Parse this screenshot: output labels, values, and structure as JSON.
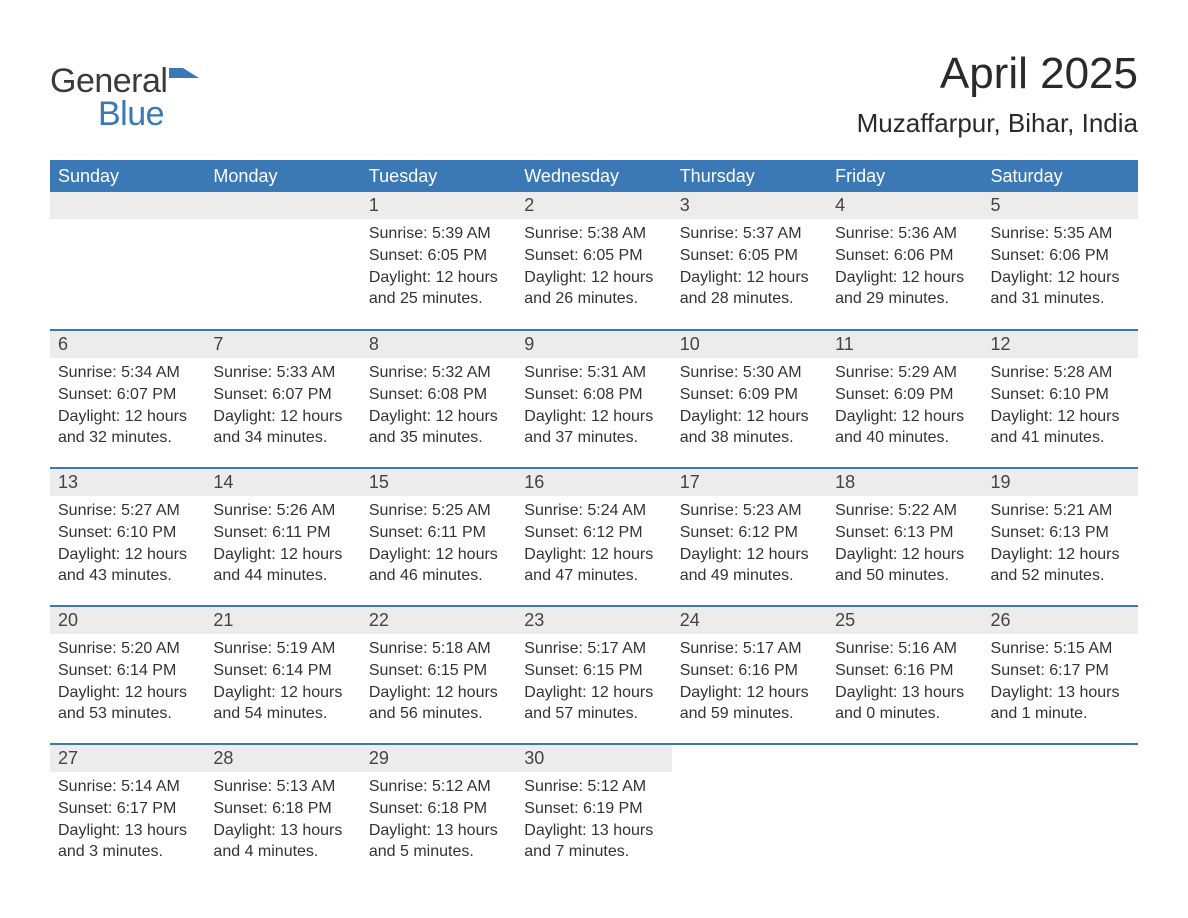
{
  "brand": {
    "name_part1": "General",
    "name_part2": "Blue",
    "color_primary": "#3a78b6",
    "color_text": "#3a3a3a",
    "icon_fill": "#3a78b6"
  },
  "title": {
    "month_year": "April 2025",
    "location": "Muzaffarpur, Bihar, India"
  },
  "styling": {
    "header_bg": "#3a78b6",
    "header_text_color": "#ffffff",
    "daynum_bg": "#ececec",
    "body_text_color": "#333333",
    "row_divider_color": "#3a78b6",
    "page_bg": "#ffffff",
    "header_fontsize": 18,
    "daynum_fontsize": 18,
    "body_fontsize": 16,
    "title_fontsize": 44,
    "location_fontsize": 26
  },
  "calendar": {
    "columns": [
      "Sunday",
      "Monday",
      "Tuesday",
      "Wednesday",
      "Thursday",
      "Friday",
      "Saturday"
    ],
    "weeks": [
      [
        null,
        null,
        {
          "day": "1",
          "sunrise": "Sunrise: 5:39 AM",
          "sunset": "Sunset: 6:05 PM",
          "daylight": "Daylight: 12 hours and 25 minutes."
        },
        {
          "day": "2",
          "sunrise": "Sunrise: 5:38 AM",
          "sunset": "Sunset: 6:05 PM",
          "daylight": "Daylight: 12 hours and 26 minutes."
        },
        {
          "day": "3",
          "sunrise": "Sunrise: 5:37 AM",
          "sunset": "Sunset: 6:05 PM",
          "daylight": "Daylight: 12 hours and 28 minutes."
        },
        {
          "day": "4",
          "sunrise": "Sunrise: 5:36 AM",
          "sunset": "Sunset: 6:06 PM",
          "daylight": "Daylight: 12 hours and 29 minutes."
        },
        {
          "day": "5",
          "sunrise": "Sunrise: 5:35 AM",
          "sunset": "Sunset: 6:06 PM",
          "daylight": "Daylight: 12 hours and 31 minutes."
        }
      ],
      [
        {
          "day": "6",
          "sunrise": "Sunrise: 5:34 AM",
          "sunset": "Sunset: 6:07 PM",
          "daylight": "Daylight: 12 hours and 32 minutes."
        },
        {
          "day": "7",
          "sunrise": "Sunrise: 5:33 AM",
          "sunset": "Sunset: 6:07 PM",
          "daylight": "Daylight: 12 hours and 34 minutes."
        },
        {
          "day": "8",
          "sunrise": "Sunrise: 5:32 AM",
          "sunset": "Sunset: 6:08 PM",
          "daylight": "Daylight: 12 hours and 35 minutes."
        },
        {
          "day": "9",
          "sunrise": "Sunrise: 5:31 AM",
          "sunset": "Sunset: 6:08 PM",
          "daylight": "Daylight: 12 hours and 37 minutes."
        },
        {
          "day": "10",
          "sunrise": "Sunrise: 5:30 AM",
          "sunset": "Sunset: 6:09 PM",
          "daylight": "Daylight: 12 hours and 38 minutes."
        },
        {
          "day": "11",
          "sunrise": "Sunrise: 5:29 AM",
          "sunset": "Sunset: 6:09 PM",
          "daylight": "Daylight: 12 hours and 40 minutes."
        },
        {
          "day": "12",
          "sunrise": "Sunrise: 5:28 AM",
          "sunset": "Sunset: 6:10 PM",
          "daylight": "Daylight: 12 hours and 41 minutes."
        }
      ],
      [
        {
          "day": "13",
          "sunrise": "Sunrise: 5:27 AM",
          "sunset": "Sunset: 6:10 PM",
          "daylight": "Daylight: 12 hours and 43 minutes."
        },
        {
          "day": "14",
          "sunrise": "Sunrise: 5:26 AM",
          "sunset": "Sunset: 6:11 PM",
          "daylight": "Daylight: 12 hours and 44 minutes."
        },
        {
          "day": "15",
          "sunrise": "Sunrise: 5:25 AM",
          "sunset": "Sunset: 6:11 PM",
          "daylight": "Daylight: 12 hours and 46 minutes."
        },
        {
          "day": "16",
          "sunrise": "Sunrise: 5:24 AM",
          "sunset": "Sunset: 6:12 PM",
          "daylight": "Daylight: 12 hours and 47 minutes."
        },
        {
          "day": "17",
          "sunrise": "Sunrise: 5:23 AM",
          "sunset": "Sunset: 6:12 PM",
          "daylight": "Daylight: 12 hours and 49 minutes."
        },
        {
          "day": "18",
          "sunrise": "Sunrise: 5:22 AM",
          "sunset": "Sunset: 6:13 PM",
          "daylight": "Daylight: 12 hours and 50 minutes."
        },
        {
          "day": "19",
          "sunrise": "Sunrise: 5:21 AM",
          "sunset": "Sunset: 6:13 PM",
          "daylight": "Daylight: 12 hours and 52 minutes."
        }
      ],
      [
        {
          "day": "20",
          "sunrise": "Sunrise: 5:20 AM",
          "sunset": "Sunset: 6:14 PM",
          "daylight": "Daylight: 12 hours and 53 minutes."
        },
        {
          "day": "21",
          "sunrise": "Sunrise: 5:19 AM",
          "sunset": "Sunset: 6:14 PM",
          "daylight": "Daylight: 12 hours and 54 minutes."
        },
        {
          "day": "22",
          "sunrise": "Sunrise: 5:18 AM",
          "sunset": "Sunset: 6:15 PM",
          "daylight": "Daylight: 12 hours and 56 minutes."
        },
        {
          "day": "23",
          "sunrise": "Sunrise: 5:17 AM",
          "sunset": "Sunset: 6:15 PM",
          "daylight": "Daylight: 12 hours and 57 minutes."
        },
        {
          "day": "24",
          "sunrise": "Sunrise: 5:17 AM",
          "sunset": "Sunset: 6:16 PM",
          "daylight": "Daylight: 12 hours and 59 minutes."
        },
        {
          "day": "25",
          "sunrise": "Sunrise: 5:16 AM",
          "sunset": "Sunset: 6:16 PM",
          "daylight": "Daylight: 13 hours and 0 minutes."
        },
        {
          "day": "26",
          "sunrise": "Sunrise: 5:15 AM",
          "sunset": "Sunset: 6:17 PM",
          "daylight": "Daylight: 13 hours and 1 minute."
        }
      ],
      [
        {
          "day": "27",
          "sunrise": "Sunrise: 5:14 AM",
          "sunset": "Sunset: 6:17 PM",
          "daylight": "Daylight: 13 hours and 3 minutes."
        },
        {
          "day": "28",
          "sunrise": "Sunrise: 5:13 AM",
          "sunset": "Sunset: 6:18 PM",
          "daylight": "Daylight: 13 hours and 4 minutes."
        },
        {
          "day": "29",
          "sunrise": "Sunrise: 5:12 AM",
          "sunset": "Sunset: 6:18 PM",
          "daylight": "Daylight: 13 hours and 5 minutes."
        },
        {
          "day": "30",
          "sunrise": "Sunrise: 5:12 AM",
          "sunset": "Sunset: 6:19 PM",
          "daylight": "Daylight: 13 hours and 7 minutes."
        },
        null,
        null,
        null
      ]
    ]
  }
}
